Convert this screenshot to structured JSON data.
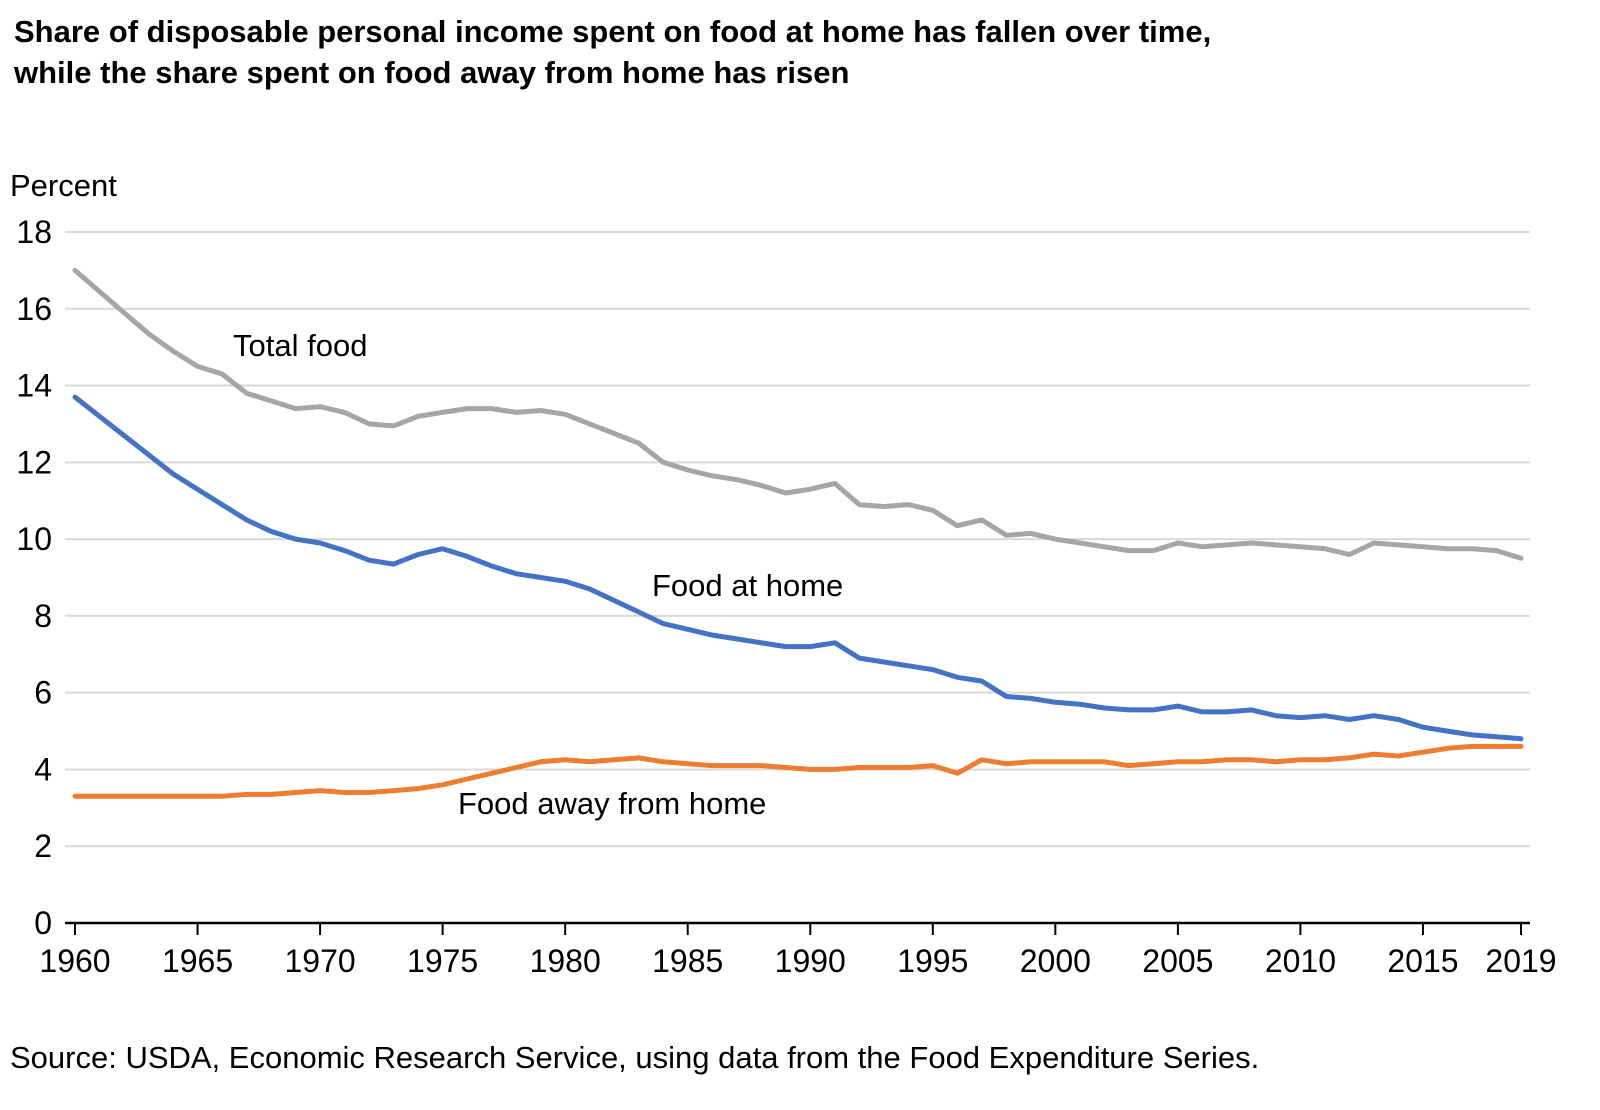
{
  "title_lines": [
    "Share of disposable personal income spent on food at home has fallen over time,",
    "while the share spent on food away from home has risen"
  ],
  "y_axis_title": "Percent",
  "source_note": "Source: USDA, Economic Research Service, using data from the Food Expenditure Series.",
  "annotations": {
    "total": "Total food",
    "home": "Food at home",
    "away": "Food away from home"
  },
  "colors": {
    "total_food": "#a6a6a6",
    "food_at_home": "#4472c4",
    "food_away_from_home": "#ed7d31",
    "gridline": "#d9d9d9",
    "axis": "#000000",
    "text": "#000000"
  },
  "chart_data": {
    "type": "line",
    "title": "Share of disposable personal income spent on food at home has fallen over time, while the share spent on food away from home has risen",
    "xlabel": "",
    "ylabel": "Percent",
    "ylim": [
      0,
      18
    ],
    "y_ticks": [
      0,
      2,
      4,
      6,
      8,
      10,
      12,
      14,
      16,
      18
    ],
    "x_ticks": [
      1960,
      1965,
      1970,
      1975,
      1980,
      1985,
      1990,
      1995,
      2000,
      2005,
      2010,
      2015,
      2019
    ],
    "grid": "horizontal",
    "legend_position": "inline-labels",
    "x": [
      1960,
      1961,
      1962,
      1963,
      1964,
      1965,
      1966,
      1967,
      1968,
      1969,
      1970,
      1971,
      1972,
      1973,
      1974,
      1975,
      1976,
      1977,
      1978,
      1979,
      1980,
      1981,
      1982,
      1983,
      1984,
      1985,
      1986,
      1987,
      1988,
      1989,
      1990,
      1991,
      1992,
      1993,
      1994,
      1995,
      1996,
      1997,
      1998,
      1999,
      2000,
      2001,
      2002,
      2003,
      2004,
      2005,
      2006,
      2007,
      2008,
      2009,
      2010,
      2011,
      2012,
      2013,
      2014,
      2015,
      2016,
      2017,
      2018,
      2019
    ],
    "series": [
      {
        "name": "Total food",
        "color": "#a6a6a6",
        "values": [
          17.0,
          16.45,
          15.9,
          15.35,
          14.9,
          14.5,
          14.3,
          13.8,
          13.6,
          13.4,
          13.45,
          13.3,
          13.0,
          12.95,
          13.2,
          13.3,
          13.4,
          13.4,
          13.3,
          13.35,
          13.25,
          13.0,
          12.75,
          12.5,
          12.0,
          11.8,
          11.65,
          11.55,
          11.4,
          11.2,
          11.3,
          11.45,
          10.9,
          10.85,
          10.9,
          10.75,
          10.35,
          10.5,
          10.1,
          10.15,
          10.0,
          9.9,
          9.8,
          9.7,
          9.7,
          9.9,
          9.8,
          9.85,
          9.9,
          9.85,
          9.8,
          9.75,
          9.6,
          9.9,
          9.85,
          9.8,
          9.75,
          9.75,
          9.7,
          9.5
        ]
      },
      {
        "name": "Food at home",
        "color": "#4472c4",
        "values": [
          13.7,
          13.2,
          12.7,
          12.2,
          11.7,
          11.3,
          10.9,
          10.5,
          10.2,
          10.0,
          9.9,
          9.7,
          9.45,
          9.35,
          9.6,
          9.75,
          9.55,
          9.3,
          9.1,
          9.0,
          8.9,
          8.7,
          8.4,
          8.1,
          7.8,
          7.65,
          7.5,
          7.4,
          7.3,
          7.2,
          7.2,
          7.3,
          6.9,
          6.8,
          6.7,
          6.6,
          6.4,
          6.3,
          5.9,
          5.85,
          5.75,
          5.7,
          5.6,
          5.55,
          5.55,
          5.65,
          5.5,
          5.5,
          5.55,
          5.4,
          5.35,
          5.4,
          5.3,
          5.4,
          5.3,
          5.1,
          5.0,
          4.9,
          4.85,
          4.8
        ]
      },
      {
        "name": "Food away from home",
        "color": "#ed7d31",
        "values": [
          3.3,
          3.3,
          3.3,
          3.3,
          3.3,
          3.3,
          3.3,
          3.35,
          3.35,
          3.4,
          3.45,
          3.4,
          3.4,
          3.45,
          3.5,
          3.6,
          3.75,
          3.9,
          4.05,
          4.2,
          4.25,
          4.2,
          4.25,
          4.3,
          4.2,
          4.15,
          4.1,
          4.1,
          4.1,
          4.05,
          4.0,
          4.0,
          4.05,
          4.05,
          4.05,
          4.1,
          3.9,
          4.25,
          4.15,
          4.2,
          4.2,
          4.2,
          4.2,
          4.1,
          4.15,
          4.2,
          4.2,
          4.25,
          4.25,
          4.2,
          4.25,
          4.25,
          4.3,
          4.4,
          4.35,
          4.45,
          4.55,
          4.6,
          4.6,
          4.6
        ]
      }
    ]
  }
}
